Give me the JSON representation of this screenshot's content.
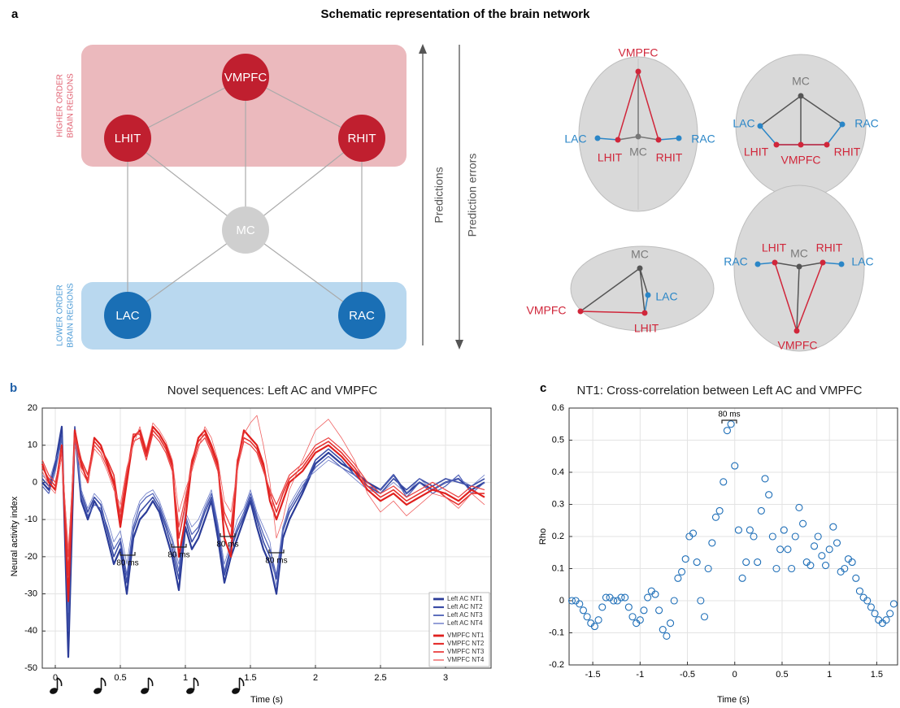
{
  "figure_title": "Schematic representation of the brain network",
  "panel_labels": [
    "a",
    "b",
    "c"
  ],
  "diagram": {
    "nodes": [
      "VMPFC",
      "LHIT",
      "RHIT",
      "MC",
      "LAC",
      "RAC"
    ],
    "higher_order_label": [
      "HIGHER ORDER",
      "BRAIN REGIONS"
    ],
    "lower_order_label": [
      "LOWER ORDER",
      "BRAIN REGIONS"
    ],
    "arrows": [
      "Predictions",
      "Prediction errors"
    ],
    "brain_views": [
      [
        "VMPFC",
        "LAC",
        "LHIT",
        "MC",
        "RHIT",
        "RAC"
      ],
      [
        "MC",
        "LAC",
        "RAC",
        "LHIT",
        "VMPFC",
        "RHIT"
      ],
      [
        "MC",
        "LAC",
        "VMPFC",
        "LHIT"
      ],
      [
        "LHIT",
        "RHIT",
        "RAC",
        "MC",
        "LAC",
        "VMPFC"
      ]
    ]
  },
  "chart_data": [
    {
      "type": "line",
      "title": "Novel sequences: Left AC and VMPFC",
      "x_label": "Time (s)",
      "y_label": "Neural activity index",
      "xlim": [
        -0.1,
        3.35
      ],
      "ylim": [
        -50,
        20
      ],
      "xticks": [
        0,
        0.5,
        1,
        1.5,
        2,
        2.5,
        3
      ],
      "yticks": [
        -50,
        -40,
        -30,
        -20,
        -10,
        0,
        10,
        20
      ],
      "grid": true,
      "legend": "lower right",
      "annotations": [
        "80 ms",
        "80 ms",
        "80 ms",
        "80 ms"
      ],
      "x": [
        -0.1,
        -0.05,
        0,
        0.05,
        0.1,
        0.15,
        0.2,
        0.25,
        0.3,
        0.35,
        0.4,
        0.45,
        0.5,
        0.55,
        0.6,
        0.65,
        0.7,
        0.75,
        0.8,
        0.85,
        0.9,
        0.95,
        1,
        1.05,
        1.1,
        1.15,
        1.2,
        1.25,
        1.3,
        1.35,
        1.4,
        1.45,
        1.5,
        1.55,
        1.6,
        1.65,
        1.7,
        1.75,
        1.8,
        1.9,
        2,
        2.1,
        2.2,
        2.3,
        2.4,
        2.5,
        2.6,
        2.7,
        2.8,
        2.9,
        3,
        3.1,
        3.2,
        3.3
      ],
      "series": [
        {
          "name": "Left AC NT1",
          "color": "#2b3c98",
          "values": [
            0,
            -2,
            5,
            15,
            -47,
            14,
            -5,
            -10,
            -5,
            -8,
            -15,
            -22,
            -18,
            -30,
            -15,
            -10,
            -8,
            -5,
            -8,
            -14,
            -20,
            -29,
            -12,
            -18,
            -15,
            -10,
            -5,
            -15,
            -27,
            -20,
            -15,
            -10,
            -5,
            -12,
            -18,
            -22,
            -30,
            -15,
            -10,
            -3,
            5,
            8,
            5,
            3,
            0,
            -2,
            2,
            -3,
            0,
            -2,
            0,
            1,
            -2,
            0
          ]
        },
        {
          "name": "Left AC NT2",
          "color": "#3a4ca6",
          "values": [
            1,
            -1,
            4,
            13,
            -40,
            15,
            -3,
            -8,
            -4,
            -6,
            -13,
            -20,
            -16,
            -27,
            -13,
            -8,
            -6,
            -4,
            -7,
            -12,
            -18,
            -26,
            -10,
            -16,
            -13,
            -8,
            -4,
            -13,
            -25,
            -18,
            -13,
            -9,
            -4,
            -10,
            -16,
            -20,
            -26,
            -13,
            -8,
            -2,
            6,
            9,
            6,
            2,
            -1,
            -3,
            1,
            -2,
            1,
            -1,
            1,
            0,
            -1,
            1
          ]
        },
        {
          "name": "Left AC NT3",
          "color": "#4d5fb6",
          "values": [
            -1,
            -3,
            3,
            12,
            -35,
            13,
            -4,
            -9,
            -6,
            -7,
            -12,
            -18,
            -15,
            -25,
            -12,
            -6,
            -4,
            -3,
            -6,
            -11,
            -16,
            -24,
            -9,
            -14,
            -12,
            -7,
            -3,
            -12,
            -24,
            -17,
            -12,
            -8,
            -3,
            -9,
            -14,
            -18,
            -25,
            -12,
            -7,
            -1,
            4,
            7,
            4,
            2,
            -1,
            -2,
            2,
            -4,
            0,
            -3,
            -1,
            2,
            -3,
            0
          ]
        },
        {
          "name": "Left AC NT4",
          "color": "#6878c6",
          "values": [
            2,
            0,
            6,
            10,
            -30,
            12,
            -2,
            -7,
            -3,
            -5,
            -10,
            -16,
            -13,
            -22,
            -10,
            -5,
            -3,
            -2,
            -5,
            -10,
            -15,
            -22,
            -8,
            -12,
            -10,
            -6,
            -2,
            -11,
            -22,
            -16,
            -10,
            -7,
            -2,
            -8,
            -12,
            -16,
            -28,
            -12,
            -6,
            0,
            3,
            6,
            4,
            1,
            -2,
            -3,
            0,
            -3,
            1,
            -2,
            0,
            1,
            -1,
            2
          ]
        },
        {
          "name": "VMPFC NT1",
          "color": "#e0201e",
          "values": [
            5,
            0,
            -2,
            10,
            -32,
            14,
            5,
            0,
            12,
            10,
            5,
            0,
            -12,
            0,
            12,
            14,
            8,
            15,
            13,
            10,
            5,
            -20,
            -10,
            5,
            12,
            14,
            10,
            5,
            -15,
            -20,
            5,
            14,
            12,
            10,
            5,
            -5,
            -10,
            -5,
            0,
            3,
            8,
            10,
            7,
            3,
            -2,
            -5,
            -3,
            -6,
            -4,
            -2,
            -3,
            -5,
            -2,
            -4
          ]
        },
        {
          "name": "VMPFC NT2",
          "color": "#e5302e",
          "values": [
            4,
            1,
            -1,
            9,
            -25,
            13,
            6,
            2,
            11,
            9,
            6,
            2,
            -10,
            2,
            13,
            13,
            7,
            14,
            12,
            9,
            4,
            -15,
            -6,
            6,
            11,
            13,
            9,
            4,
            -10,
            -15,
            6,
            12,
            11,
            9,
            4,
            -3,
            -8,
            -3,
            1,
            4,
            9,
            11,
            8,
            4,
            -1,
            -4,
            -2,
            -5,
            -3,
            -1,
            -4,
            -6,
            -3,
            -3
          ]
        },
        {
          "name": "VMPFC NT3",
          "color": "#ea4040",
          "values": [
            6,
            2,
            0,
            8,
            -20,
            12,
            4,
            1,
            10,
            8,
            4,
            -1,
            -8,
            3,
            11,
            12,
            6,
            13,
            11,
            8,
            3,
            -12,
            -4,
            4,
            10,
            12,
            8,
            3,
            -8,
            -12,
            4,
            11,
            10,
            8,
            3,
            -2,
            -6,
            -2,
            2,
            5,
            10,
            12,
            9,
            5,
            0,
            -3,
            -1,
            -4,
            -2,
            0,
            -2,
            -4,
            -1,
            -2
          ]
        },
        {
          "name": "VMPFC NT4",
          "color": "#ef6060",
          "values": [
            3,
            -1,
            -3,
            7,
            -18,
            10,
            3,
            0,
            9,
            7,
            3,
            -2,
            -6,
            4,
            10,
            15,
            9,
            16,
            14,
            11,
            6,
            -8,
            -2,
            3,
            9,
            15,
            12,
            6,
            -5,
            -8,
            3,
            13,
            16,
            18,
            10,
            0,
            -15,
            -10,
            -2,
            6,
            14,
            17,
            12,
            6,
            -3,
            -8,
            -5,
            -9,
            -6,
            -3,
            -4,
            -7,
            -3,
            -6
          ]
        }
      ]
    },
    {
      "type": "scatter",
      "title": "NT1: Cross-correlation between Left AC and VMPFC",
      "x_label": "Time (s)",
      "y_label": "Rho",
      "xlim": [
        -1.75,
        1.72
      ],
      "ylim": [
        -0.2,
        0.6
      ],
      "xticks": [
        -1.5,
        -1,
        -0.5,
        0,
        0.5,
        1,
        1.5
      ],
      "yticks": [
        -0.2,
        -0.1,
        0,
        0.1,
        0.2,
        0.3,
        0.4,
        0.5,
        0.6
      ],
      "grid": true,
      "color": "#1f6fb8",
      "annotations": [
        "80 ms"
      ],
      "x": [
        -1.72,
        -1.68,
        -1.64,
        -1.6,
        -1.56,
        -1.52,
        -1.48,
        -1.44,
        -1.4,
        -1.36,
        -1.32,
        -1.28,
        -1.24,
        -1.2,
        -1.16,
        -1.12,
        -1.08,
        -1.04,
        -1,
        -0.96,
        -0.92,
        -0.88,
        -0.84,
        -0.8,
        -0.76,
        -0.72,
        -0.68,
        -0.64,
        -0.6,
        -0.56,
        -0.52,
        -0.48,
        -0.44,
        -0.4,
        -0.36,
        -0.32,
        -0.28,
        -0.24,
        -0.2,
        -0.16,
        -0.12,
        -0.08,
        -0.04,
        0,
        0.04,
        0.08,
        0.12,
        0.16,
        0.2,
        0.24,
        0.28,
        0.32,
        0.36,
        0.4,
        0.44,
        0.48,
        0.52,
        0.56,
        0.6,
        0.64,
        0.68,
        0.72,
        0.76,
        0.8,
        0.84,
        0.88,
        0.92,
        0.96,
        1,
        1.04,
        1.08,
        1.12,
        1.16,
        1.2,
        1.24,
        1.28,
        1.32,
        1.36,
        1.4,
        1.44,
        1.48,
        1.52,
        1.56,
        1.6,
        1.64,
        1.68
      ],
      "values": [
        0,
        0,
        -0.01,
        -0.03,
        -0.05,
        -0.07,
        -0.08,
        -0.06,
        -0.02,
        0.01,
        0.01,
        0,
        0,
        0.01,
        0.01,
        -0.02,
        -0.05,
        -0.07,
        -0.06,
        -0.03,
        0.01,
        0.03,
        0.02,
        -0.03,
        -0.09,
        -0.11,
        -0.07,
        0,
        0.07,
        0.09,
        0.13,
        0.2,
        0.21,
        0.12,
        0,
        -0.05,
        0.1,
        0.18,
        0.26,
        0.28,
        0.37,
        0.53,
        0.55,
        0.42,
        0.22,
        0.07,
        0.12,
        0.22,
        0.2,
        0.12,
        0.28,
        0.38,
        0.33,
        0.2,
        0.1,
        0.16,
        0.22,
        0.16,
        0.1,
        0.2,
        0.29,
        0.24,
        0.12,
        0.11,
        0.17,
        0.2,
        0.14,
        0.11,
        0.16,
        0.23,
        0.18,
        0.09,
        0.1,
        0.13,
        0.12,
        0.07,
        0.03,
        0.01,
        0,
        -0.02,
        -0.04,
        -0.06,
        -0.07,
        -0.06,
        -0.04,
        -0.01
      ]
    }
  ]
}
